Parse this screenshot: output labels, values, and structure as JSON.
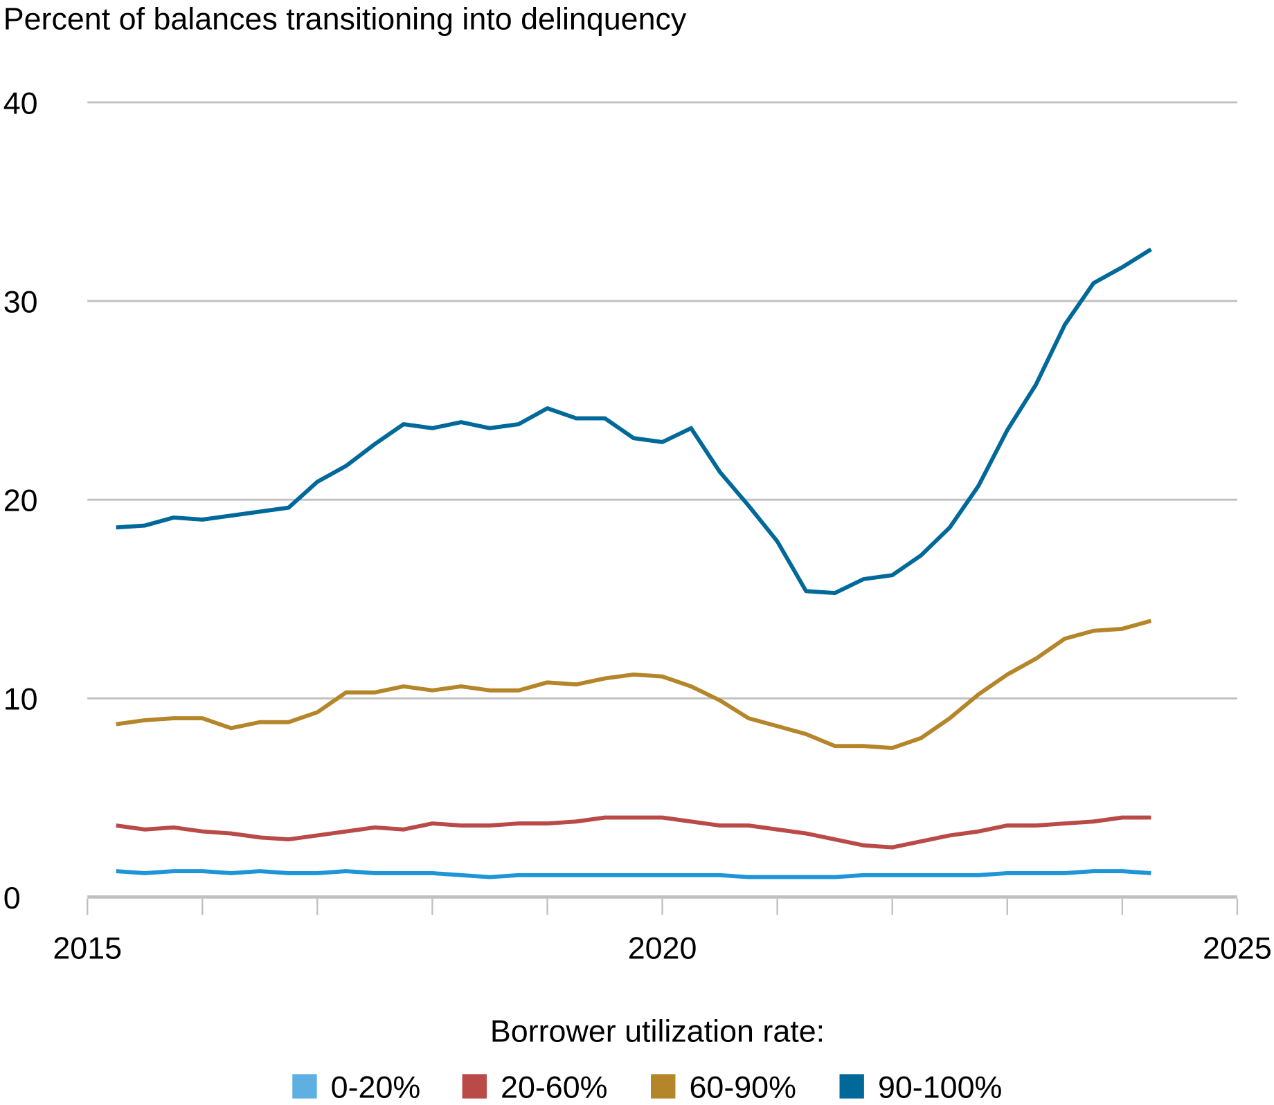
{
  "chart_data": {
    "type": "line",
    "title": "Percent of balances transitioning into delinquency",
    "xlabel": "",
    "ylabel": "Percent of balances transitioning into delinquency",
    "xlim": [
      2015,
      2025
    ],
    "ylim": [
      0,
      40
    ],
    "grid": true,
    "x_ticks": [
      "2015",
      "2020",
      "2025"
    ],
    "x_tick_values": [
      2015,
      2020,
      2025
    ],
    "y_ticks": [
      "0",
      "10",
      "20",
      "30",
      "40"
    ],
    "y_tick_values": [
      0,
      10,
      20,
      30,
      40
    ],
    "legend_title": "Borrower utilization rate:",
    "legend_position": "bottom",
    "x_start": 2015.25,
    "x_step": 0.25,
    "series": [
      {
        "name": "0-20%",
        "color": "#1d95d6",
        "legend_color": "#5eafe2",
        "values": [
          1.3,
          1.2,
          1.3,
          1.3,
          1.2,
          1.3,
          1.2,
          1.2,
          1.3,
          1.2,
          1.2,
          1.2,
          1.1,
          1.0,
          1.1,
          1.1,
          1.1,
          1.1,
          1.1,
          1.1,
          1.1,
          1.1,
          1.0,
          1.0,
          1.0,
          1.0,
          1.1,
          1.1,
          1.1,
          1.1,
          1.1,
          1.2,
          1.2,
          1.2,
          1.3,
          1.3,
          1.2
        ]
      },
      {
        "name": "20-60%",
        "color": "#b94a48",
        "legend_color": "#b94a48",
        "values": [
          3.6,
          3.4,
          3.5,
          3.3,
          3.2,
          3.0,
          2.9,
          3.1,
          3.3,
          3.5,
          3.4,
          3.7,
          3.6,
          3.6,
          3.7,
          3.7,
          3.8,
          4.0,
          4.0,
          4.0,
          3.8,
          3.6,
          3.6,
          3.4,
          3.2,
          2.9,
          2.6,
          2.5,
          2.8,
          3.1,
          3.3,
          3.6,
          3.6,
          3.7,
          3.8,
          4.0,
          4.0
        ]
      },
      {
        "name": "60-90%",
        "color": "#b5852a",
        "legend_color": "#b5852a",
        "values": [
          8.7,
          8.9,
          9.0,
          9.0,
          8.5,
          8.8,
          8.8,
          9.3,
          10.3,
          10.3,
          10.6,
          10.4,
          10.6,
          10.4,
          10.4,
          10.8,
          10.7,
          11.0,
          11.2,
          11.1,
          10.6,
          9.9,
          9.0,
          8.6,
          8.2,
          7.6,
          7.6,
          7.5,
          8.0,
          9.0,
          10.2,
          11.2,
          12.0,
          13.0,
          13.4,
          13.5,
          13.9
        ]
      },
      {
        "name": "90-100%",
        "color": "#00699a",
        "legend_color": "#00699a",
        "values": [
          18.6,
          18.7,
          19.1,
          19.0,
          19.2,
          19.4,
          19.6,
          20.9,
          21.7,
          22.8,
          23.8,
          23.6,
          23.9,
          23.6,
          23.8,
          24.6,
          24.1,
          24.1,
          23.1,
          22.9,
          23.6,
          21.4,
          19.7,
          17.9,
          15.4,
          15.3,
          16.0,
          16.2,
          17.2,
          18.6,
          20.7,
          23.5,
          25.8,
          28.8,
          30.9,
          31.7,
          32.6
        ]
      }
    ]
  }
}
